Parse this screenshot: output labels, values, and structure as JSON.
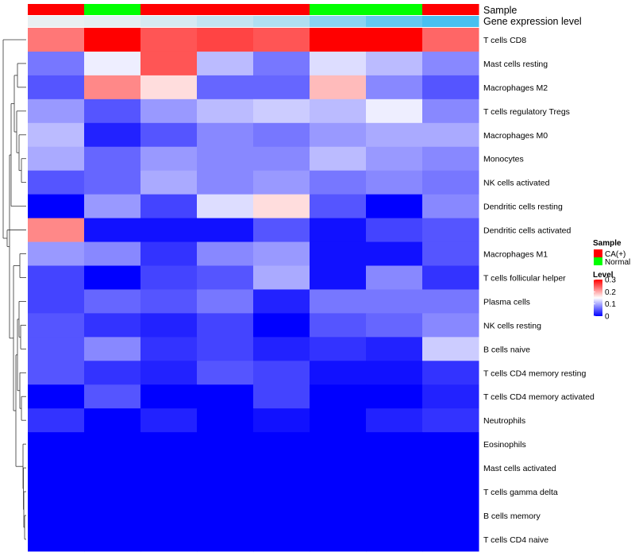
{
  "chart_data": {
    "type": "heatmap",
    "title": "",
    "annotation_tracks": [
      {
        "name": "Sample",
        "values": [
          "CA(+)",
          "Normal",
          "CA(+)",
          "CA(+)",
          "CA(+)",
          "Normal",
          "Normal",
          "CA(+)"
        ]
      },
      {
        "name": "Gene expression level",
        "values": [
          0.02,
          0.03,
          0.06,
          0.1,
          0.14,
          0.22,
          0.3,
          0.36
        ]
      }
    ],
    "rows": [
      "T cells CD8",
      "Mast cells resting",
      "Macrophages M2",
      "T cells regulatory  Tregs",
      "Macrophages M0",
      "Monocytes",
      "NK cells activated",
      "Dendritic cells resting",
      "Dendritic cells activated",
      "Macrophages M1",
      "T cells follicular helper",
      "Plasma cells",
      "NK cells resting",
      "B cells naive",
      "T cells CD4 memory resting",
      "T cells CD4 memory activated",
      "Neutrophils",
      "Eosinophils",
      "Mast cells activated",
      "T cells gamma delta",
      "B cells memory",
      "T cells CD4 naive"
    ],
    "values": [
      [
        0.23,
        0.3,
        0.25,
        0.26,
        0.25,
        0.3,
        0.3,
        0.24
      ],
      [
        0.07,
        0.14,
        0.25,
        0.11,
        0.07,
        0.13,
        0.11,
        0.08
      ],
      [
        0.05,
        0.22,
        0.17,
        0.06,
        0.06,
        0.19,
        0.08,
        0.05
      ],
      [
        0.09,
        0.05,
        0.09,
        0.11,
        0.12,
        0.11,
        0.14,
        0.08
      ],
      [
        0.11,
        0.02,
        0.05,
        0.08,
        0.07,
        0.09,
        0.1,
        0.1
      ],
      [
        0.1,
        0.06,
        0.09,
        0.08,
        0.08,
        0.11,
        0.09,
        0.08
      ],
      [
        0.05,
        0.06,
        0.1,
        0.08,
        0.09,
        0.07,
        0.08,
        0.07
      ],
      [
        0.0,
        0.09,
        0.04,
        0.13,
        0.17,
        0.05,
        0.0,
        0.08
      ],
      [
        0.22,
        0.01,
        0.01,
        0.01,
        0.05,
        0.01,
        0.04,
        0.05
      ],
      [
        0.09,
        0.08,
        0.03,
        0.08,
        0.09,
        0.01,
        0.01,
        0.05
      ],
      [
        0.04,
        0.0,
        0.04,
        0.05,
        0.1,
        0.01,
        0.08,
        0.03
      ],
      [
        0.04,
        0.06,
        0.05,
        0.07,
        0.02,
        0.07,
        0.07,
        0.07
      ],
      [
        0.05,
        0.03,
        0.02,
        0.04,
        0.0,
        0.05,
        0.06,
        0.08
      ],
      [
        0.05,
        0.08,
        0.03,
        0.04,
        0.02,
        0.03,
        0.02,
        0.12
      ],
      [
        0.05,
        0.03,
        0.02,
        0.05,
        0.04,
        0.01,
        0.01,
        0.03
      ],
      [
        0.0,
        0.05,
        0.0,
        0.0,
        0.04,
        0.0,
        0.0,
        0.02
      ],
      [
        0.03,
        0.0,
        0.02,
        0.0,
        0.01,
        0.0,
        0.02,
        0.03
      ],
      [
        0.0,
        0.0,
        0.0,
        0.0,
        0.0,
        0.0,
        0.0,
        0.0
      ],
      [
        0.0,
        0.0,
        0.0,
        0.0,
        0.0,
        0.0,
        0.0,
        0.0
      ],
      [
        0.0,
        0.0,
        0.0,
        0.0,
        0.0,
        0.0,
        0.0,
        0.0
      ],
      [
        0.0,
        0.0,
        0.0,
        0.0,
        0.0,
        0.0,
        0.0,
        0.0
      ],
      [
        0.0,
        0.0,
        0.0,
        0.0,
        0.0,
        0.0,
        0.0,
        0.0
      ]
    ],
    "color_scale": {
      "min": 0,
      "max": 0.3,
      "low": "#0000ff",
      "mid": "#ffffff",
      "high": "#ff0000",
      "midpoint": 0.15
    },
    "legend": {
      "sample_title": "Sample",
      "sample_entries": [
        {
          "label": "CA(+)",
          "color": "#ff0000"
        },
        {
          "label": "Normal",
          "color": "#00ff00"
        }
      ],
      "level_title": "Level",
      "level_ticks": [
        {
          "value": 0.3,
          "label": "0.3"
        },
        {
          "value": 0.2,
          "label": "0.2"
        },
        {
          "value": 0.1,
          "label": "0.1"
        },
        {
          "value": 0,
          "label": "0"
        }
      ],
      "placement": "right"
    },
    "gene_expression_colors": {
      "low": "#f2f2f2",
      "high": "#48c0f0",
      "min": 0.0,
      "max": 0.36
    },
    "dendrogram": "rows"
  }
}
